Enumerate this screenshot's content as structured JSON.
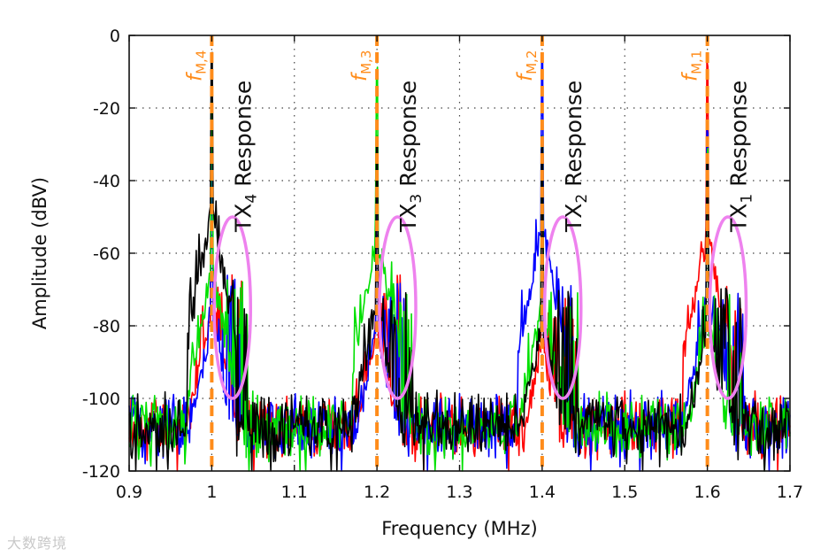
{
  "chart_data": {
    "type": "line",
    "title": "",
    "xlabel": "Frequency (MHz)",
    "ylabel": "Amplitude (dBV)",
    "xlim": [
      0.9,
      1.7
    ],
    "ylim": [
      -120,
      0
    ],
    "grid": true,
    "x_ticks": [
      0.9,
      1.0,
      1.1,
      1.2,
      1.3,
      1.4,
      1.5,
      1.6,
      1.7
    ],
    "x_tick_labels": [
      "0.9",
      "1",
      "1.1",
      "1.2",
      "1.3",
      "1.4",
      "1.5",
      "1.6",
      "1.7"
    ],
    "y_ticks": [
      0,
      -20,
      -40,
      -60,
      -80,
      -100,
      -120
    ],
    "y_tick_labels": [
      "0",
      "-20",
      "-40",
      "-60",
      "-80",
      "-100",
      "-120"
    ],
    "noise_floor": -103,
    "series": [
      {
        "name": "red",
        "color": "#ff0000",
        "peaks": [
          {
            "x": 1.6,
            "y": -10
          },
          {
            "x": 1.0,
            "y": -30
          },
          {
            "x": 1.2,
            "y": -35
          },
          {
            "x": 1.4,
            "y": -40
          }
        ]
      },
      {
        "name": "blue",
        "color": "#0000ff",
        "peaks": [
          {
            "x": 1.4,
            "y": -8
          },
          {
            "x": 1.6,
            "y": -28
          },
          {
            "x": 1.0,
            "y": -34
          },
          {
            "x": 1.2,
            "y": -36
          }
        ]
      },
      {
        "name": "green",
        "color": "#00e000",
        "peaks": [
          {
            "x": 1.2,
            "y": -11
          },
          {
            "x": 1.0,
            "y": -20
          },
          {
            "x": 1.4,
            "y": -30
          },
          {
            "x": 1.6,
            "y": -35
          }
        ]
      },
      {
        "name": "black",
        "color": "#000000",
        "peaks": [
          {
            "x": 1.0,
            "y": -5
          },
          {
            "x": 1.2,
            "y": -31
          },
          {
            "x": 1.4,
            "y": -34
          },
          {
            "x": 1.6,
            "y": -36
          }
        ]
      }
    ],
    "response_clusters": [
      {
        "x": 1.025,
        "peak_y": -63
      },
      {
        "x": 1.225,
        "peak_y": -64
      },
      {
        "x": 1.425,
        "peak_y": -65
      },
      {
        "x": 1.625,
        "peak_y": -66
      }
    ],
    "markers": [
      {
        "x": 1.0,
        "base": "f",
        "sub": "M,4",
        "color": "#ff8c1a"
      },
      {
        "x": 1.2,
        "base": "f",
        "sub": "M,3",
        "color": "#ff8c1a"
      },
      {
        "x": 1.4,
        "base": "f",
        "sub": "M,2",
        "color": "#ff8c1a"
      },
      {
        "x": 1.6,
        "base": "f",
        "sub": "M,1",
        "color": "#ff8c1a"
      }
    ],
    "annotations": [
      {
        "base": "TX",
        "sub": "4",
        "suffix": " Response",
        "x": 1.045
      },
      {
        "base": "TX",
        "sub": "3",
        "suffix": " Response",
        "x": 1.245
      },
      {
        "base": "TX",
        "sub": "2",
        "suffix": " Response",
        "x": 1.445
      },
      {
        "base": "TX",
        "sub": "1",
        "suffix": " Response",
        "x": 1.645
      }
    ],
    "ellipses": [
      {
        "cx": 1.025,
        "cy": -75,
        "rx": 0.022,
        "ry": 25,
        "color": "#ee82ee"
      },
      {
        "cx": 1.225,
        "cy": -75,
        "rx": 0.022,
        "ry": 25,
        "color": "#ee82ee"
      },
      {
        "cx": 1.425,
        "cy": -75,
        "rx": 0.022,
        "ry": 25,
        "color": "#ee82ee"
      },
      {
        "cx": 1.625,
        "cy": -75,
        "rx": 0.022,
        "ry": 25,
        "color": "#ee82ee"
      }
    ]
  },
  "watermark": "大数跨境"
}
